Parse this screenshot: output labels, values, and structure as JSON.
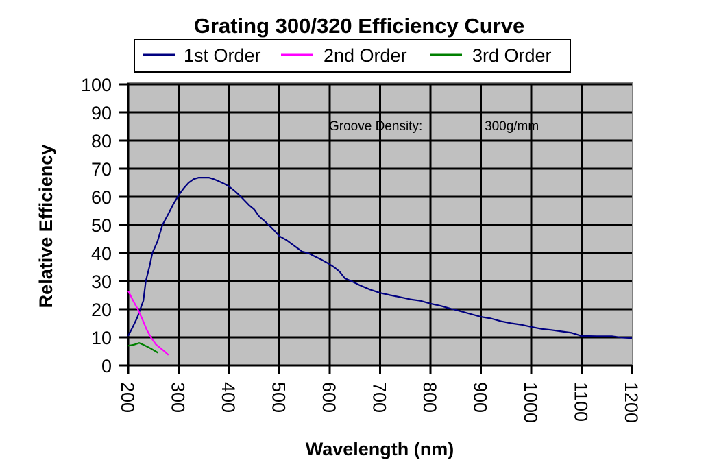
{
  "chart_data": {
    "type": "line",
    "title": "Grating 300/320 Efficiency Curve",
    "xlabel": "Wavelength (nm)",
    "ylabel": "Relative Efficiency",
    "xlim": [
      200,
      1200
    ],
    "ylim": [
      0,
      100
    ],
    "x_ticks": [
      200,
      300,
      400,
      500,
      600,
      700,
      800,
      900,
      1000,
      1100,
      1200
    ],
    "x_tick_labels": [
      "200",
      "300",
      "400",
      "500",
      "600",
      "700",
      "800",
      "900",
      "1000",
      "1100",
      "1200"
    ],
    "y_ticks": [
      0,
      10,
      20,
      30,
      40,
      50,
      60,
      70,
      80,
      90,
      100
    ],
    "y_tick_labels": [
      "0",
      "10",
      "20",
      "30",
      "40",
      "50",
      "60",
      "70",
      "80",
      "90",
      "100"
    ],
    "grid": true,
    "plot_background": "#c0c0c0",
    "legend_placement": "top",
    "annotations": [
      {
        "label": "Groove Density:",
        "value": "300g/mm",
        "x": 440,
        "y": 85
      }
    ],
    "series": [
      {
        "name": "1st Order",
        "color": "#000080",
        "x": [
          200,
          210,
          218,
          224,
          230,
          235,
          242,
          248,
          258,
          268,
          280,
          290,
          300,
          310,
          320,
          330,
          340,
          350,
          360,
          370,
          380,
          390,
          400,
          412,
          424,
          432,
          440,
          450,
          460,
          470,
          479,
          490,
          500,
          515,
          530,
          545,
          557,
          570,
          585,
          600,
          610,
          620,
          630,
          645,
          660,
          680,
          700,
          720,
          740,
          760,
          780,
          800,
          820,
          840,
          860,
          880,
          900,
          920,
          940,
          960,
          980,
          1000,
          1020,
          1040,
          1060,
          1080,
          1100,
          1130,
          1160,
          1180,
          1200
        ],
        "y": [
          10.5,
          14,
          17,
          20,
          23,
          30,
          35,
          40,
          44,
          50,
          54,
          57.5,
          60.5,
          63,
          65,
          66.3,
          66.8,
          66.8,
          66.8,
          66.3,
          65.5,
          64.7,
          63.7,
          62,
          60,
          58.5,
          57,
          55.5,
          53,
          51.5,
          50,
          48,
          46,
          44.5,
          42.5,
          40.5,
          40,
          38.8,
          37.5,
          36,
          34.8,
          33.3,
          31,
          29.8,
          28.5,
          27,
          25.8,
          25,
          24.3,
          23.5,
          23,
          22,
          21.2,
          20.2,
          19.3,
          18.3,
          17.3,
          16.7,
          15.7,
          15,
          14.5,
          13.7,
          13,
          12.6,
          12.1,
          11.6,
          10.5,
          10.4,
          10.4,
          9.9,
          9.7
        ]
      },
      {
        "name": "2nd Order",
        "color": "#ff00ff",
        "x": [
          200,
          210,
          219,
          228,
          236,
          245,
          255,
          265,
          272,
          280
        ],
        "y": [
          26.5,
          23,
          20,
          16.5,
          13,
          10,
          7.5,
          6,
          5,
          3.7
        ]
      },
      {
        "name": "3rd Order",
        "color": "#008000",
        "x": [
          200,
          212,
          222,
          232,
          245,
          259
        ],
        "y": [
          7,
          7.4,
          8,
          7.2,
          6,
          4.5
        ]
      }
    ]
  }
}
